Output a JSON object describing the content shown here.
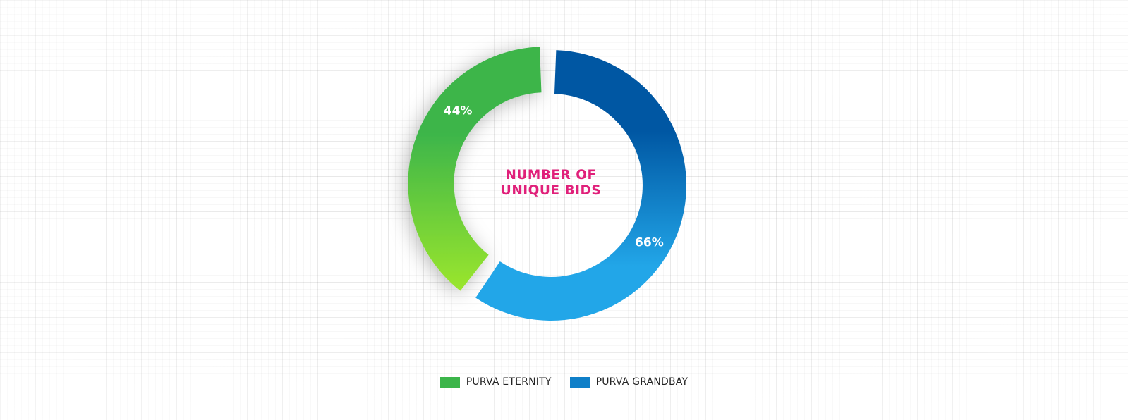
{
  "chart_data": {
    "type": "pie",
    "variant": "donut",
    "title_lines": [
      "NUMBER OF",
      "UNIQUE BIDS"
    ],
    "title_color": "#e0207a",
    "series": [
      {
        "name": "PURVA ETERNITY",
        "value": 44,
        "label": "44%",
        "color": "#3cb54a",
        "gradient_from": "#3cb54a",
        "gradient_to": "#9be62c"
      },
      {
        "name": "PURVA GRANDBAY",
        "value": 66,
        "label": "66%",
        "color": "#0f7fc8",
        "gradient_from": "#0057a3",
        "gradient_to": "#22a6e8"
      }
    ],
    "legend_position": "bottom-center"
  }
}
